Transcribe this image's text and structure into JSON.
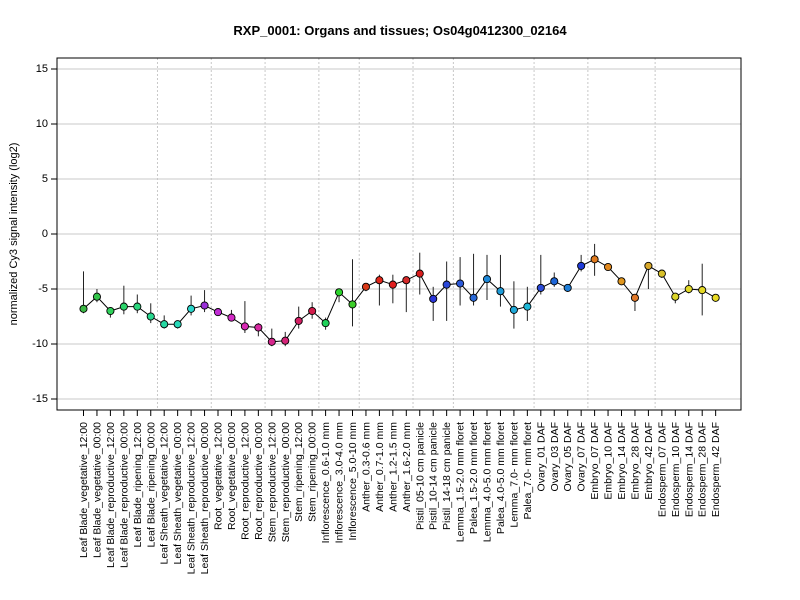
{
  "chart_data": {
    "type": "line",
    "title": "RXP_0001: Organs and tissues; Os04g0412300_02164",
    "xlabel": "",
    "ylabel": "normalized Cy3 signal intensity (log2)",
    "ylim": [
      -16,
      16
    ],
    "yticks": [
      -15,
      -10,
      -5,
      0,
      5,
      10,
      15
    ],
    "grid": true,
    "line_color": "#000000",
    "categories": [
      "Leaf Blade_vegetative_12:00",
      "Leaf Blade_vegetative_00:00",
      "Leaf Blade_reproductive_12:00",
      "Leaf Blade_reproductive_00:00",
      "Leaf Blade_ripening_12:00",
      "Leaf Blade_ripening_00:00",
      "Leaf Sheath_vegetative_12:00",
      "Leaf Sheath_vegetative_00:00",
      "Leaf Sheath_reproductive_12:00",
      "Leaf Sheath_reproductive_00:00",
      "Root_vegetative_12:00",
      "Root_vegetative_00:00",
      "Root_reproductive_12:00",
      "Root_reproductive_00:00",
      "Stem_reproductive_12:00",
      "Stem_reproductive_00:00",
      "Stem_ripening_12:00",
      "Stem_ripening_00:00",
      "Inflorescence_0.6-1.0 mm",
      "Inflorescence_3.0-4.0 mm",
      "Inflorescence_5.0-10 mm",
      "Anther_0.3-0.6 mm",
      "Anther_0.7-1.0 mm",
      "Anther_1.2-1.5 mm",
      "Anther_1.6-2.0 mm",
      "Pistil_05-10 cm panicle",
      "Pistil_10-14 cm panicle",
      "Pistil_14-18 cm panicle",
      "Lemma_1.5-2.0 mm floret",
      "Palea_1.5-2.0 mm floret",
      "Lemma_4.0-5.0 mm floret",
      "Palea_4.0-5.0 mm floret",
      "Lemma_7.0- mm floret",
      "Palea_7.0- mm floret",
      "Ovary_01 DAF",
      "Ovary_03 DAF",
      "Ovary_05 DAF",
      "Ovary_07 DAF",
      "Embryo_07 DAF",
      "Embryo_10 DAF",
      "Embryo_14 DAF",
      "Embryo_28 DAF",
      "Embryo_42 DAF",
      "Endosperm_07 DAF",
      "Endosperm_10 DAF",
      "Endosperm_14 DAF",
      "Endosperm_28 DAF",
      "Endosperm_42 DAF"
    ],
    "values": [
      -6.8,
      -5.7,
      -7.0,
      -6.6,
      -6.6,
      -7.5,
      -8.2,
      -8.2,
      -6.8,
      -6.5,
      -7.1,
      -7.6,
      -8.4,
      -8.5,
      -9.8,
      -9.7,
      -7.9,
      -7.0,
      -8.1,
      -5.3,
      -6.4,
      -4.8,
      -4.2,
      -4.6,
      -4.2,
      -3.6,
      -5.9,
      -4.6,
      -4.5,
      -5.8,
      -4.1,
      -5.2,
      -6.9,
      -6.6,
      -4.9,
      -4.3,
      -4.9,
      -2.9,
      -2.3,
      -3.0,
      -4.3,
      -5.8,
      -2.9,
      -3.6,
      -5.7,
      -5.0,
      -5.1,
      -5.8
    ],
    "error_low": [
      -7.2,
      -6.2,
      -7.6,
      -7.3,
      -7.2,
      -8.1,
      -8.6,
      -8.6,
      -7.4,
      -7.1,
      -7.4,
      -7.9,
      -9.0,
      -9.3,
      -10.2,
      -10.2,
      -8.6,
      -7.7,
      -8.7,
      -6.2,
      -8.4,
      -5.2,
      -6.5,
      -6.3,
      -7.1,
      -5.5,
      -7.9,
      -7.9,
      -6.5,
      -6.5,
      -6.0,
      -6.6,
      -8.6,
      -7.9,
      -5.5,
      -4.8,
      -5.0,
      -3.4,
      -3.8,
      -3.2,
      -4.6,
      -7.0,
      -5.0,
      -4.0,
      -6.3,
      -5.4,
      -7.4,
      -6.0
    ],
    "error_high": [
      -3.4,
      -5.0,
      -6.7,
      -4.7,
      -5.5,
      -6.3,
      -7.4,
      -8.0,
      -5.6,
      -5.1,
      -6.9,
      -6.9,
      -6.1,
      -8.1,
      -8.6,
      -8.9,
      -6.6,
      -6.2,
      -7.6,
      -5.1,
      -2.3,
      -4.6,
      -3.7,
      -3.7,
      -3.9,
      -1.7,
      -4.8,
      -2.5,
      -2.1,
      -1.8,
      -1.9,
      -1.9,
      -4.3,
      -4.8,
      -1.9,
      -3.5,
      -4.7,
      -1.9,
      -0.9,
      -2.9,
      -4.0,
      -5.5,
      -2.7,
      -3.4,
      -5.4,
      -4.2,
      -2.7,
      -5.7
    ],
    "point_colors": [
      "#3cb846",
      "#33c64a",
      "#2fd15a",
      "#2cd46a",
      "#2ad67c",
      "#28d78f",
      "#27d8a3",
      "#27d8b8",
      "#2ad6cb",
      "#9a2fd8",
      "#c02cd4",
      "#d42bc7",
      "#d82ab4",
      "#d729a2",
      "#d6268d",
      "#d52479",
      "#d42064",
      "#d11b4a",
      "#20d15a",
      "#2cd42c",
      "#3cce2a",
      "#d93a19",
      "#e0261a",
      "#e01e1e",
      "#d42a2a",
      "#d81c1c",
      "#2a35d8",
      "#2a47d8",
      "#2a58d8",
      "#2a6ad8",
      "#1e88d8",
      "#1e9bd8",
      "#1ea8d8",
      "#1eb8d8",
      "#2a4ad8",
      "#1e66d8",
      "#1e7ed8",
      "#1e3ad8",
      "#e07a1e",
      "#e0881e",
      "#e0961e",
      "#e07828",
      "#d8a82a",
      "#d8c02a",
      "#dcd62a",
      "#e0d828",
      "#e4d826",
      "#e8da24"
    ]
  }
}
